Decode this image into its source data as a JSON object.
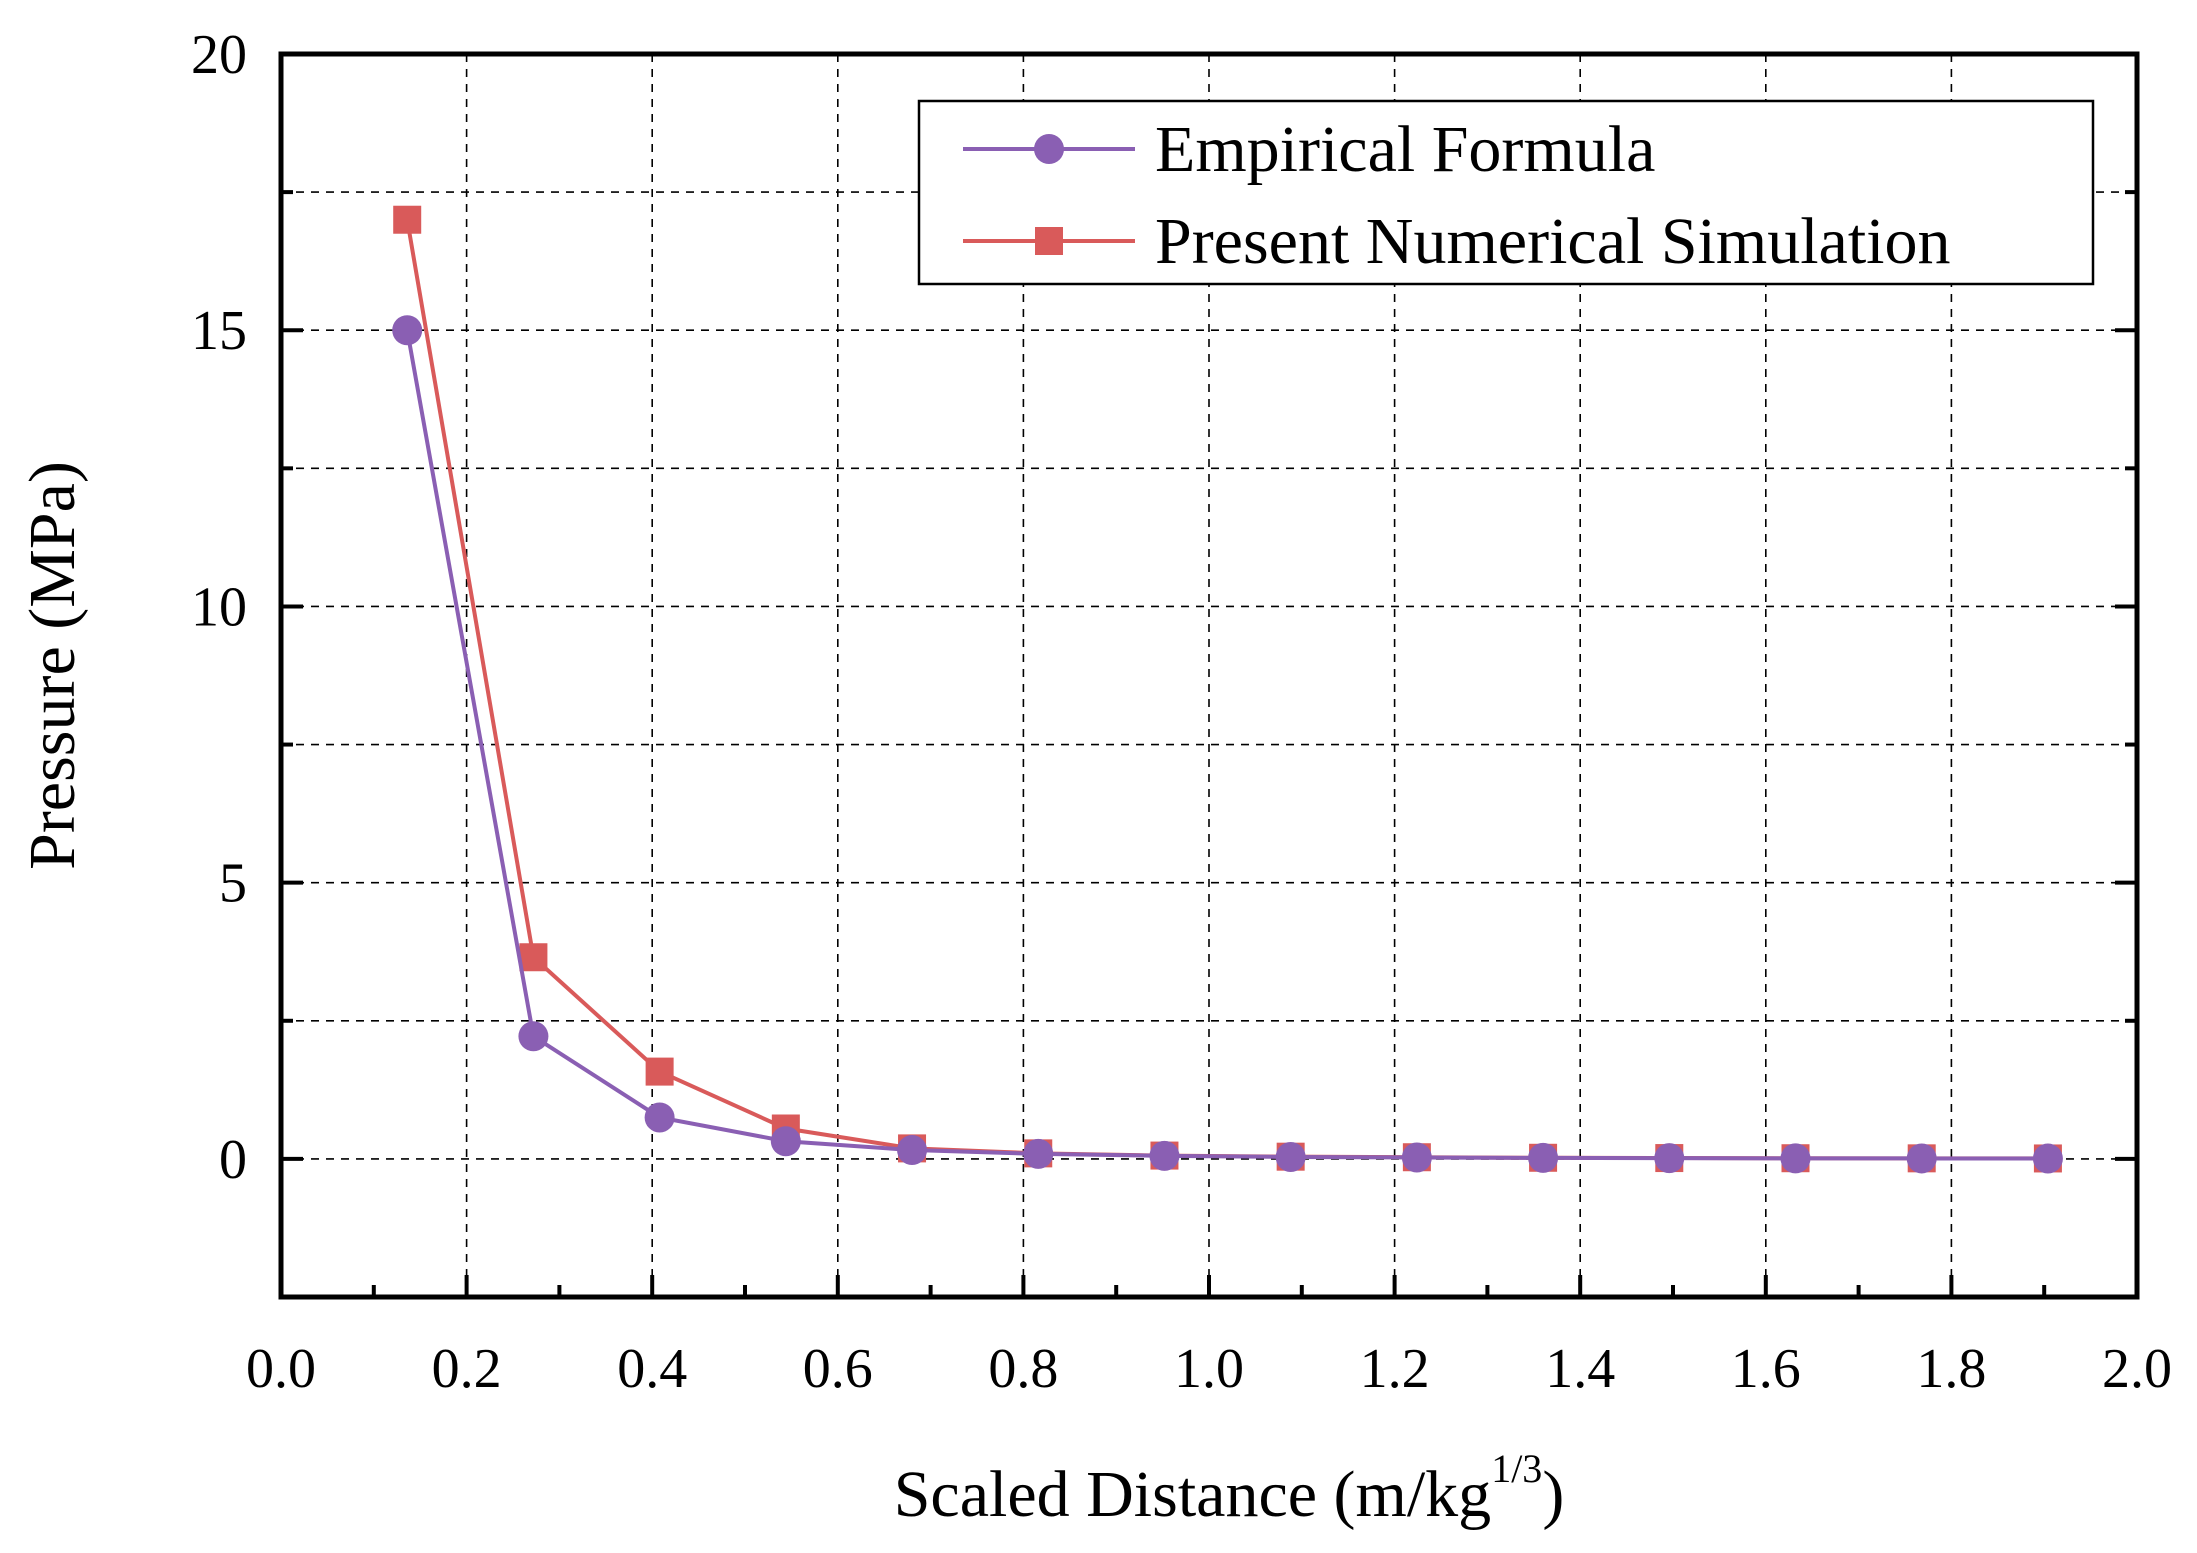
{
  "chart_data": {
    "type": "line",
    "title": "",
    "xlabel_main": "Scaled Distance (m/kg",
    "xlabel_sup": "1/3",
    "xlabel_close": ")",
    "ylabel": "Pressure (MPa)",
    "xlim": [
      0.0,
      2.0
    ],
    "ylim": [
      -2.5,
      20
    ],
    "xticks": [
      0.0,
      0.2,
      0.4,
      0.6,
      0.8,
      1.0,
      1.2,
      1.4,
      1.6,
      1.8,
      2.0
    ],
    "xtick_labels": [
      "0.0",
      "0.2",
      "0.4",
      "0.6",
      "0.8",
      "1.0",
      "1.2",
      "1.4",
      "1.6",
      "1.8",
      "2.0"
    ],
    "yticks": [
      0,
      5,
      10,
      15,
      20
    ],
    "ytick_labels": [
      "0",
      "5",
      "10",
      "15",
      "20"
    ],
    "grid": true,
    "legend_position": "top-right",
    "x": [
      0.136,
      0.272,
      0.408,
      0.544,
      0.68,
      0.816,
      0.952,
      1.088,
      1.224,
      1.36,
      1.496,
      1.632,
      1.768,
      1.904
    ],
    "series": [
      {
        "name": "Present Numerical Simulation",
        "color": "#d95a5a",
        "marker": "square",
        "values": [
          17.0,
          3.65,
          1.58,
          0.55,
          0.19,
          0.1,
          0.06,
          0.04,
          0.03,
          0.02,
          0.015,
          0.012,
          0.01,
          0.008
        ]
      },
      {
        "name": "Empirical Formula",
        "color": "#8a5fb3",
        "marker": "circle",
        "values": [
          15.0,
          2.22,
          0.75,
          0.32,
          0.16,
          0.09,
          0.055,
          0.035,
          0.025,
          0.018,
          0.013,
          0.01,
          0.008,
          0.006
        ]
      }
    ],
    "legend_order": [
      "Empirical Formula",
      "Present Numerical Simulation"
    ]
  }
}
